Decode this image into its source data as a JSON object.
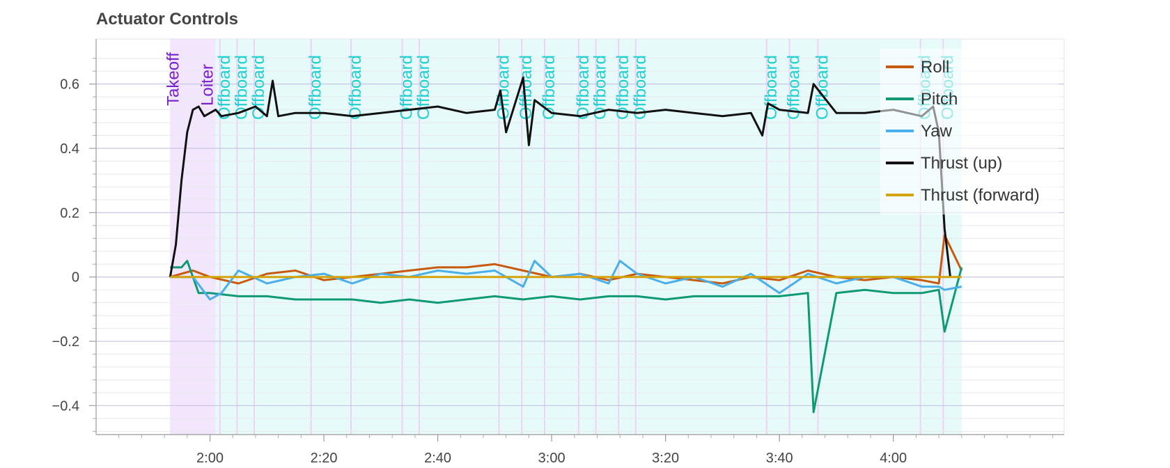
{
  "chart_data": {
    "type": "line",
    "title": "Actuator Controls",
    "xlabel": "",
    "ylabel": "",
    "x_unit": "m:ss",
    "xlim": [
      "1:40",
      "4:30"
    ],
    "ylim": [
      -0.49,
      0.74
    ],
    "x_ticks": [
      "2:00",
      "2:20",
      "2:40",
      "3:00",
      "3:20",
      "3:40",
      "4:00"
    ],
    "y_ticks": [
      0.6,
      0.4,
      0.2,
      0,
      -0.2,
      -0.4
    ],
    "y_tick_labels": [
      "0.6",
      "0.4",
      "0.2",
      "0",
      "−0.2",
      "−0.4"
    ],
    "grid": true,
    "legend_position": "top-right",
    "flight_modes": [
      {
        "label": "Takeoff",
        "start": "1:53",
        "end": "2:01",
        "color": "#7722cc",
        "fill": "#ecdcfb"
      },
      {
        "label": "Loiter",
        "start": "2:01",
        "end": "2:01",
        "color": "#7722cc",
        "fill": "#ecdcfb"
      },
      {
        "label": "Offboard",
        "start": "2:01",
        "end": "4:12",
        "color": "#20d0d0",
        "fill": "#dcf8f8"
      }
    ],
    "offboard_label_positions": [
      "2:02",
      "2:05",
      "2:08",
      "2:18",
      "2:25",
      "2:34",
      "2:37",
      "2:51",
      "2:55",
      "2:59",
      "3:05",
      "3:08",
      "3:12",
      "3:15",
      "3:38",
      "3:42",
      "3:47",
      "4:05",
      "4:09"
    ],
    "series": [
      {
        "name": "Roll",
        "color": "#c85a0f",
        "x": [
          "1:53",
          "1:57",
          "2:00",
          "2:05",
          "2:10",
          "2:15",
          "2:20",
          "2:25",
          "2:30",
          "2:35",
          "2:40",
          "2:45",
          "2:50",
          "2:55",
          "3:00",
          "3:05",
          "3:10",
          "3:15",
          "3:20",
          "3:25",
          "3:30",
          "3:35",
          "3:40",
          "3:45",
          "3:50",
          "3:55",
          "4:00",
          "4:05",
          "4:08",
          "4:09",
          "4:12"
        ],
        "y": [
          0.0,
          0.02,
          0.0,
          -0.02,
          0.01,
          0.02,
          -0.01,
          0.0,
          0.01,
          0.02,
          0.03,
          0.03,
          0.04,
          0.02,
          0.0,
          0.01,
          -0.01,
          0.01,
          0.0,
          -0.01,
          -0.02,
          0.0,
          -0.01,
          0.02,
          0.0,
          -0.01,
          0.0,
          -0.01,
          -0.02,
          0.13,
          0.02
        ]
      },
      {
        "name": "Pitch",
        "color": "#0f9a75",
        "x": [
          "1:53",
          "1:55",
          "1:56",
          "1:58",
          "2:00",
          "2:05",
          "2:10",
          "2:15",
          "2:20",
          "2:25",
          "2:30",
          "2:35",
          "2:40",
          "2:45",
          "2:50",
          "2:55",
          "3:00",
          "3:05",
          "3:10",
          "3:15",
          "3:20",
          "3:25",
          "3:30",
          "3:35",
          "3:40",
          "3:45",
          "3:46",
          "3:50",
          "3:55",
          "4:00",
          "4:05",
          "4:08",
          "4:09",
          "4:12"
        ],
        "y": [
          0.03,
          0.03,
          0.05,
          -0.05,
          -0.05,
          -0.06,
          -0.06,
          -0.07,
          -0.07,
          -0.07,
          -0.08,
          -0.07,
          -0.08,
          -0.07,
          -0.06,
          -0.07,
          -0.06,
          -0.07,
          -0.06,
          -0.06,
          -0.07,
          -0.06,
          -0.06,
          -0.06,
          -0.06,
          -0.05,
          -0.42,
          -0.05,
          -0.04,
          -0.05,
          -0.05,
          -0.04,
          -0.17,
          0.03
        ]
      },
      {
        "name": "Yaw",
        "color": "#4aaee8",
        "x": [
          "1:53",
          "1:57",
          "2:00",
          "2:02",
          "2:05",
          "2:10",
          "2:15",
          "2:20",
          "2:25",
          "2:30",
          "2:35",
          "2:40",
          "2:45",
          "2:50",
          "2:55",
          "2:57",
          "3:00",
          "3:05",
          "3:10",
          "3:12",
          "3:15",
          "3:20",
          "3:25",
          "3:30",
          "3:35",
          "3:40",
          "3:45",
          "3:50",
          "3:55",
          "4:00",
          "4:05",
          "4:08",
          "4:09",
          "4:12"
        ],
        "y": [
          0.0,
          0.0,
          -0.07,
          -0.05,
          0.02,
          -0.02,
          0.0,
          0.01,
          -0.02,
          0.01,
          0.0,
          0.02,
          0.01,
          0.02,
          -0.03,
          0.05,
          0.0,
          0.01,
          -0.02,
          0.05,
          0.01,
          -0.02,
          0.0,
          -0.03,
          0.01,
          -0.05,
          0.01,
          -0.02,
          0.0,
          0.0,
          -0.03,
          -0.03,
          -0.04,
          -0.03
        ]
      },
      {
        "name": "Thrust (up)",
        "color": "#111111",
        "x": [
          "1:53",
          "1:54",
          "1:55",
          "1:56",
          "1:57",
          "1:58",
          "1:59",
          "2:00",
          "2:01",
          "2:02",
          "2:05",
          "2:08",
          "2:10",
          "2:11",
          "2:12",
          "2:15",
          "2:20",
          "2:25",
          "2:30",
          "2:35",
          "2:40",
          "2:45",
          "2:50",
          "2:51",
          "2:52",
          "2:55",
          "2:56",
          "2:57",
          "3:00",
          "3:05",
          "3:10",
          "3:15",
          "3:20",
          "3:25",
          "3:30",
          "3:35",
          "3:37",
          "3:38",
          "3:40",
          "3:45",
          "3:46",
          "3:50",
          "3:55",
          "4:00",
          "4:05",
          "4:07",
          "4:08",
          "4:09",
          "4:10"
        ],
        "y": [
          0.0,
          0.1,
          0.3,
          0.45,
          0.52,
          0.53,
          0.5,
          0.51,
          0.52,
          0.5,
          0.51,
          0.53,
          0.5,
          0.61,
          0.5,
          0.51,
          0.51,
          0.5,
          0.51,
          0.52,
          0.53,
          0.51,
          0.52,
          0.58,
          0.45,
          0.62,
          0.41,
          0.55,
          0.51,
          0.5,
          0.52,
          0.51,
          0.52,
          0.51,
          0.5,
          0.51,
          0.44,
          0.54,
          0.52,
          0.51,
          0.6,
          0.51,
          0.51,
          0.52,
          0.5,
          0.53,
          0.45,
          0.15,
          0.0
        ]
      },
      {
        "name": "Thrust (forward)",
        "color": "#d4a20a",
        "x": [
          "1:53",
          "4:12"
        ],
        "y": [
          0.0,
          0.0
        ]
      }
    ]
  }
}
